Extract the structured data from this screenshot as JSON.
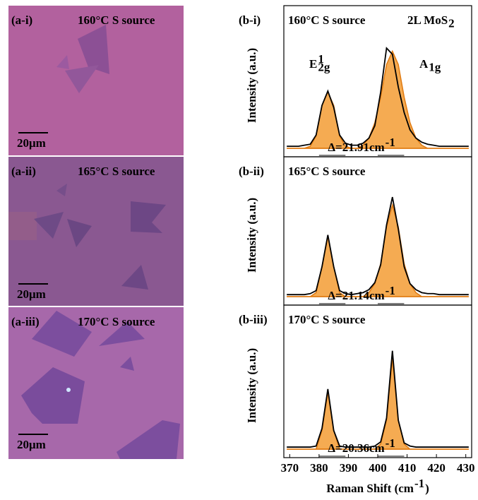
{
  "images": [
    {
      "label": "(a-i)",
      "title": "160°C S source",
      "scale": "20μm"
    },
    {
      "label": "(a-ii)",
      "title": "165°C S source",
      "scale": "20μm"
    },
    {
      "label": "(a-iii)",
      "title": "170°C S source",
      "scale": "20μm"
    }
  ],
  "chart_data": [
    {
      "type": "line",
      "panel": "(b-i)",
      "title": "160°C S source",
      "note": {
        "text": "2L MoS",
        "sub": "2"
      },
      "ylabel": "Intensity (a.u.)",
      "delta": {
        "text": "Δ=21.91cm",
        "sup": "-1"
      },
      "peak_labels": [
        {
          "text": "E",
          "sup": "1",
          "sub": "2g"
        },
        {
          "text": "A",
          "sub": "1g"
        }
      ],
      "xlim": [
        368,
        432
      ],
      "ylim": [
        0,
        1.05
      ],
      "x": [
        369,
        371,
        373,
        375,
        377,
        379,
        381,
        383,
        385,
        387,
        389,
        391,
        393,
        395,
        397,
        399,
        401,
        403,
        405,
        407,
        409,
        411,
        413,
        415,
        417,
        419,
        421,
        423,
        425,
        427,
        429,
        431
      ],
      "series": [
        {
          "color": "#f39c34",
          "fill": true,
          "values": [
            0,
            0,
            0,
            0,
            0.02,
            0.12,
            0.42,
            0.55,
            0.42,
            0.12,
            0.02,
            0,
            0,
            0,
            0,
            0,
            0,
            0,
            0,
            0,
            0,
            0,
            0,
            0,
            0,
            0,
            0,
            0,
            0,
            0,
            0,
            0
          ]
        },
        {
          "color": "#f39c34",
          "fill": true,
          "values": [
            0,
            0,
            0,
            0,
            0,
            0,
            0,
            0,
            0,
            0,
            0,
            0,
            0,
            0.03,
            0.1,
            0.25,
            0.5,
            0.82,
            0.95,
            0.82,
            0.5,
            0.25,
            0.1,
            0.03,
            0,
            0,
            0,
            0,
            0,
            0,
            0,
            0
          ]
        },
        {
          "color": "#000000",
          "fill": false,
          "values": [
            0.02,
            0.02,
            0.02,
            0.03,
            0.04,
            0.13,
            0.42,
            0.56,
            0.4,
            0.13,
            0.05,
            0.03,
            0.03,
            0.05,
            0.1,
            0.22,
            0.55,
            0.98,
            0.92,
            0.6,
            0.35,
            0.18,
            0.1,
            0.06,
            0.04,
            0.03,
            0.02,
            0.02,
            0.02,
            0.02,
            0.02,
            0.02
          ]
        }
      ]
    },
    {
      "type": "line",
      "panel": "(b-ii)",
      "title": "165°C S source",
      "ylabel": "Intensity (a.u.)",
      "delta": {
        "text": "Δ=21.14cm",
        "sup": "-1"
      },
      "xlim": [
        368,
        432
      ],
      "ylim": [
        0,
        1.05
      ],
      "x": [
        369,
        371,
        373,
        375,
        377,
        379,
        381,
        383,
        385,
        387,
        389,
        391,
        393,
        395,
        397,
        399,
        401,
        403,
        405,
        407,
        409,
        411,
        413,
        415,
        417,
        419,
        421,
        423,
        425,
        427,
        429,
        431
      ],
      "series": [
        {
          "color": "#f39c34",
          "fill": true,
          "values": [
            0,
            0,
            0,
            0,
            0,
            0.04,
            0.3,
            0.6,
            0.3,
            0.04,
            0,
            0,
            0,
            0,
            0,
            0,
            0,
            0,
            0,
            0,
            0,
            0,
            0,
            0,
            0,
            0,
            0,
            0,
            0,
            0,
            0,
            0
          ]
        },
        {
          "color": "#f39c34",
          "fill": true,
          "values": [
            0,
            0,
            0,
            0,
            0,
            0,
            0,
            0,
            0,
            0,
            0,
            0,
            0,
            0,
            0.04,
            0.13,
            0.33,
            0.7,
            0.92,
            0.7,
            0.33,
            0.13,
            0.04,
            0,
            0,
            0,
            0,
            0,
            0,
            0,
            0,
            0
          ]
        },
        {
          "color": "#000000",
          "fill": false,
          "values": [
            0.02,
            0.02,
            0.02,
            0.02,
            0.03,
            0.06,
            0.3,
            0.62,
            0.3,
            0.06,
            0.03,
            0.02,
            0.03,
            0.04,
            0.07,
            0.14,
            0.32,
            0.72,
            1.0,
            0.68,
            0.3,
            0.13,
            0.07,
            0.04,
            0.03,
            0.03,
            0.02,
            0.02,
            0.02,
            0.02,
            0.02,
            0.02
          ]
        }
      ]
    },
    {
      "type": "line",
      "panel": "(b-iii)",
      "title": "170°C S source",
      "ylabel": "Intensity (a.u.)",
      "delta": {
        "text": "Δ=20.36cm",
        "sup": "-1"
      },
      "xlabel": {
        "text": "Raman Shift (cm",
        "sup": "-1",
        "after": ")"
      },
      "xlim": [
        368,
        432
      ],
      "ylim": [
        0,
        1.05
      ],
      "xticks": [
        370,
        380,
        390,
        400,
        410,
        420,
        430
      ],
      "x": [
        369,
        371,
        373,
        375,
        377,
        379,
        381,
        383,
        385,
        387,
        389,
        391,
        393,
        395,
        397,
        399,
        401,
        403,
        405,
        407,
        409,
        411,
        413,
        415,
        417,
        419,
        421,
        423,
        425,
        427,
        429,
        431
      ],
      "series": [
        {
          "color": "#f39c34",
          "fill": true,
          "values": [
            0,
            0,
            0,
            0,
            0,
            0,
            0.18,
            0.55,
            0.18,
            0,
            0,
            0,
            0,
            0,
            0,
            0,
            0,
            0,
            0,
            0,
            0,
            0,
            0,
            0,
            0,
            0,
            0,
            0,
            0,
            0,
            0,
            0
          ]
        },
        {
          "color": "#f39c34",
          "fill": true,
          "values": [
            0,
            0,
            0,
            0,
            0,
            0,
            0,
            0,
            0,
            0,
            0,
            0,
            0,
            0,
            0,
            0,
            0.05,
            0.28,
            0.88,
            0.28,
            0.05,
            0,
            0,
            0,
            0,
            0,
            0,
            0,
            0,
            0,
            0,
            0
          ]
        },
        {
          "color": "#000000",
          "fill": false,
          "values": [
            0.02,
            0.02,
            0.02,
            0.02,
            0.02,
            0.03,
            0.2,
            0.58,
            0.18,
            0.03,
            0.02,
            0.02,
            0.02,
            0.02,
            0.02,
            0.03,
            0.07,
            0.3,
            0.95,
            0.28,
            0.06,
            0.03,
            0.02,
            0.02,
            0.02,
            0.02,
            0.02,
            0.02,
            0.02,
            0.02,
            0.02,
            0.02
          ]
        }
      ]
    }
  ]
}
